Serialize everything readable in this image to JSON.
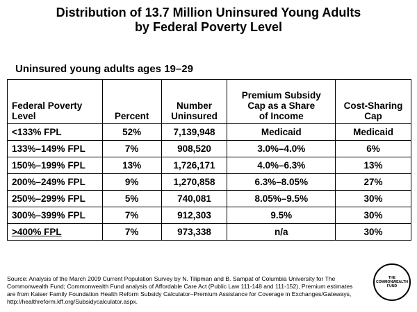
{
  "title_line1": "Distribution of 13.7 Million Uninsured Young Adults",
  "title_line2": "by Federal Poverty Level",
  "subtitle": "Uninsured young adults ages 19–29",
  "table": {
    "headers": [
      [
        "Federal Poverty",
        "Level"
      ],
      [
        "Percent"
      ],
      [
        "Number",
        "Uninsured"
      ],
      [
        "Premium Subsidy",
        "Cap as a Share",
        "of Income"
      ],
      [
        "Cost-Sharing",
        "Cap"
      ]
    ],
    "rows": [
      [
        "<133% FPL",
        "52%",
        "7,139,948",
        "Medicaid",
        "Medicaid"
      ],
      [
        "133%–149% FPL",
        "7%",
        "908,520",
        "3.0%–4.0%",
        "6%"
      ],
      [
        "150%–199% FPL",
        "13%",
        "1,726,171",
        "4.0%–6.3%",
        "13%"
      ],
      [
        "200%–249% FPL",
        "9%",
        "1,270,858",
        "6.3%–8.05%",
        "27%"
      ],
      [
        "250%–299% FPL",
        "5%",
        "740,081",
        "8.05%–9.5%",
        "30%"
      ],
      [
        "300%–399% FPL",
        "7%",
        "912,303",
        "9.5%",
        "30%"
      ],
      [
        ">400% FPL",
        "7%",
        "973,338",
        "n/a",
        "30%"
      ]
    ]
  },
  "source": "Source: Analysis of the March 2009 Current Population Survey by N. Tilipman and B. Sampat of Columbia University for The Commonwealth Fund; Commonwealth Fund analysis of Affordable Care Act (Public Law 111-148 and 111-152), Premium estimates are from Kaiser Family Foundation Health Reform Subsidy Calculator–Premium Assistance for Coverage in Exchanges/Gateways, http://healthreform.kff.org/Subsidycalculator.aspx.",
  "logo_text": [
    "THE",
    "COMMONWEALTH",
    "FUND"
  ]
}
